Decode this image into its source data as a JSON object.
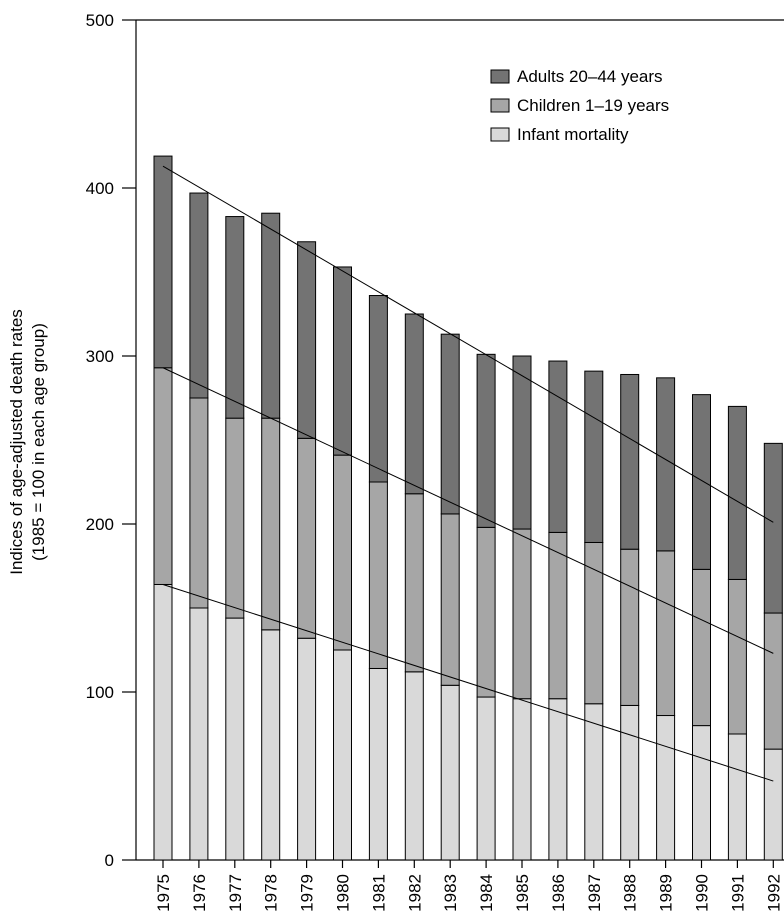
{
  "chart_data": {
    "type": "bar",
    "stacked": true,
    "title": "",
    "xlabel": "",
    "ylabel_line1": "Indices of age-adjusted death rates",
    "ylabel_line2": "(1985 = 100 in each age group)",
    "ylim": [
      0,
      500
    ],
    "yticks": [
      0,
      100,
      200,
      300,
      400,
      500
    ],
    "grid": false,
    "legend_position": "top-right",
    "categories": [
      "1975",
      "1976",
      "1977",
      "1978",
      "1979",
      "1980",
      "1981",
      "1982",
      "1983",
      "1984",
      "1985",
      "1986",
      "1987",
      "1988",
      "1989",
      "1990",
      "1991",
      "1992"
    ],
    "series": [
      {
        "name": "Infant mortality",
        "color": "#d9d9d9",
        "values": [
          164,
          150,
          144,
          137,
          132,
          125,
          114,
          112,
          104,
          97,
          96,
          96,
          93,
          92,
          86,
          80,
          75,
          66
        ]
      },
      {
        "name": "Children 1–19 years",
        "color": "#a6a6a6",
        "values": [
          129,
          125,
          119,
          126,
          119,
          116,
          111,
          106,
          102,
          101,
          101,
          99,
          96,
          93,
          98,
          93,
          92,
          81
        ]
      },
      {
        "name": "Adults 20–44 years",
        "color": "#737373",
        "values": [
          126,
          122,
          120,
          122,
          117,
          112,
          111,
          107,
          107,
          103,
          103,
          102,
          102,
          104,
          103,
          104,
          103,
          101
        ]
      }
    ],
    "trend_lines": [
      {
        "from_year": "1975",
        "from_value": 164,
        "to_year": "1992",
        "to_value": 47
      },
      {
        "from_year": "1975",
        "from_value": 293,
        "to_year": "1992",
        "to_value": 123
      },
      {
        "from_year": "1975",
        "from_value": 413,
        "to_year": "1992",
        "to_value": 201
      }
    ]
  }
}
